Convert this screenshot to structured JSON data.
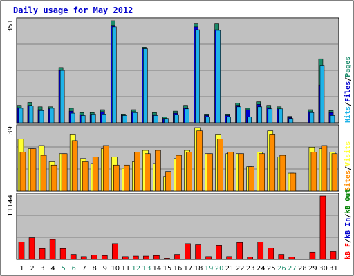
{
  "title": "Daily usage for May 2012",
  "colors": {
    "background": "#ffffff",
    "panel": "#c0c0c0",
    "grid": "#808080",
    "title": "#0000cc",
    "pages": "#1a8a6a",
    "files": "#0000cc",
    "hits": "#1fb3e8",
    "visits": "#ffff33",
    "sites": "#ff8c00",
    "kbin": "#0000cc",
    "kbout": "#008000",
    "kbf": "#ff0000",
    "weekend_label": "#1a8a6a",
    "weekday_label": "#000000"
  },
  "legend": {
    "top": [
      "Pages",
      "/",
      "Files",
      "/",
      "Hits"
    ],
    "middle": [
      "Visits",
      "/",
      "Sites"
    ],
    "bottom": [
      "kB F",
      "/",
      "kB In",
      "/",
      "kB Out"
    ]
  },
  "chart_data": [
    {
      "type": "bar",
      "title": "Daily usage for May 2012",
      "panel": "Pages / Files / Hits",
      "ymax_label": "351",
      "ylim": [
        0,
        351
      ],
      "categories": [
        "1",
        "2",
        "3",
        "4",
        "5",
        "6",
        "7",
        "8",
        "9",
        "10",
        "11",
        "12",
        "13",
        "14",
        "15",
        "16",
        "17",
        "18",
        "19",
        "20",
        "21",
        "22",
        "23",
        "24",
        "25",
        "26",
        "27",
        "28",
        "29",
        "30",
        "31"
      ],
      "weekend_days": [
        "5",
        "6",
        "12",
        "13",
        "19",
        "20",
        "26",
        "27"
      ],
      "series": [
        {
          "name": "Pages",
          "values": [
            60,
            70,
            55,
            55,
            190,
            50,
            35,
            35,
            45,
            351,
            30,
            45,
            260,
            35,
            20,
            40,
            60,
            340,
            30,
            340,
            30,
            68,
            50,
            72,
            60,
            55,
            22,
            0,
            45,
            220,
            42
          ]
        },
        {
          "name": "Files",
          "values": [
            52,
            60,
            45,
            48,
            180,
            40,
            28,
            28,
            38,
            335,
            25,
            38,
            255,
            28,
            15,
            33,
            50,
            330,
            25,
            320,
            25,
            60,
            45,
            63,
            52,
            48,
            18,
            0,
            38,
            130,
            35
          ]
        },
        {
          "name": "Hits",
          "values": [
            50,
            58,
            42,
            50,
            180,
            33,
            25,
            30,
            30,
            330,
            25,
            35,
            255,
            25,
            15,
            28,
            48,
            320,
            20,
            318,
            20,
            55,
            20,
            55,
            48,
            48,
            15,
            0,
            35,
            198,
            25
          ]
        }
      ]
    },
    {
      "type": "bar",
      "panel": "Visits / Sites",
      "ymax_label": "39",
      "ylim": [
        0,
        39
      ],
      "categories": [
        "1",
        "2",
        "3",
        "4",
        "5",
        "6",
        "7",
        "8",
        "9",
        "10",
        "11",
        "12",
        "13",
        "14",
        "15",
        "16",
        "17",
        "18",
        "19",
        "20",
        "21",
        "22",
        "23",
        "24",
        "25",
        "26",
        "27",
        "28",
        "29",
        "30",
        "31"
      ],
      "series": [
        {
          "name": "Visits",
          "values": [
            32,
            26,
            28,
            18,
            23,
            35,
            20,
            17,
            26,
            21,
            14,
            18,
            25,
            17,
            9,
            20,
            25,
            39,
            23,
            35,
            23,
            23,
            15,
            24,
            37,
            21,
            11,
            0,
            27,
            26,
            24
          ]
        },
        {
          "name": "Sites",
          "values": [
            24,
            26,
            22,
            16,
            23,
            31,
            18,
            21,
            28,
            16,
            16,
            24,
            23,
            25,
            12,
            22,
            24,
            37,
            23,
            32,
            24,
            23,
            15,
            23,
            35,
            22,
            11,
            0,
            24,
            28,
            23
          ]
        }
      ]
    },
    {
      "type": "bar",
      "panel": "kB F / kB In / kB Out",
      "ymax_label": "11144",
      "ylim": [
        0,
        11144
      ],
      "categories": [
        "1",
        "2",
        "3",
        "4",
        "5",
        "6",
        "7",
        "8",
        "9",
        "10",
        "11",
        "12",
        "13",
        "14",
        "15",
        "16",
        "17",
        "18",
        "19",
        "20",
        "21",
        "22",
        "23",
        "24",
        "25",
        "26",
        "27",
        "28",
        "29",
        "30",
        "31"
      ],
      "series": [
        {
          "name": "kB F",
          "values": [
            3100,
            3800,
            1900,
            3500,
            1900,
            900,
            500,
            800,
            700,
            2800,
            500,
            600,
            600,
            700,
            200,
            900,
            2800,
            2600,
            500,
            2500,
            500,
            3000,
            400,
            3100,
            2000,
            900,
            400,
            0,
            1300,
            11144,
            1400
          ]
        },
        {
          "name": "kB In",
          "values": [
            0,
            0,
            0,
            0,
            0,
            0,
            0,
            0,
            0,
            0,
            0,
            0,
            0,
            0,
            0,
            0,
            0,
            0,
            0,
            0,
            0,
            0,
            0,
            0,
            0,
            0,
            0,
            0,
            0,
            0,
            0
          ]
        },
        {
          "name": "kB Out",
          "values": [
            0,
            0,
            0,
            0,
            0,
            0,
            0,
            0,
            0,
            0,
            0,
            0,
            0,
            0,
            0,
            0,
            0,
            0,
            0,
            0,
            0,
            0,
            0,
            0,
            0,
            0,
            0,
            0,
            0,
            0,
            0
          ]
        }
      ]
    }
  ]
}
